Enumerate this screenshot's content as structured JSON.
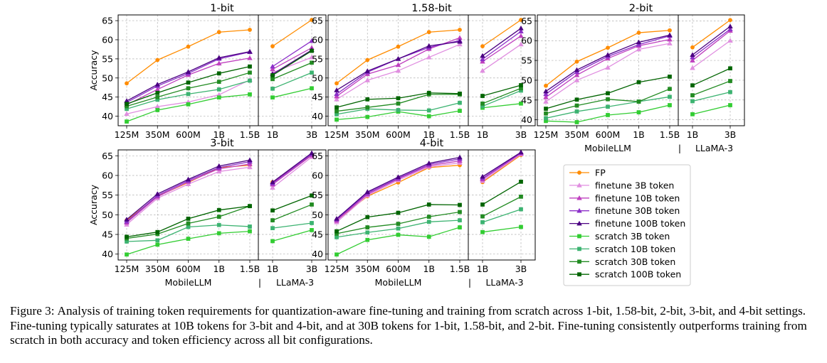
{
  "figure": {
    "ylabel": "Accuracy",
    "group_left": "MobileLLM",
    "group_right": "LLaMA-3",
    "group_separator": "|",
    "left_ticks": [
      "125M",
      "350M",
      "600M",
      "1B",
      "1.5B"
    ],
    "right_ticks": [
      "1B",
      "3B"
    ]
  },
  "caption": {
    "label": "Figure 3:",
    "text": "Analysis of training token requirements for quantization-aware fine-tuning and training from scratch across 1-bit, 1.58-bit, 2-bit, 3-bit, and 4-bit settings. Fine-tuning typically saturates at 10B tokens for 3-bit and 4-bit, and at 30B tokens for 1-bit, 1.58-bit, and 2-bit. Fine-tuning consistently outperforms training from scratch in both accuracy and token efficiency across all bit configurations."
  },
  "legend": [
    {
      "name": "FP",
      "color": "#ff8c00",
      "marker": "circle"
    },
    {
      "name": "finetune 3B token",
      "color": "#e08ee0",
      "marker": "triangle"
    },
    {
      "name": "finetune 10B token",
      "color": "#bf40bf",
      "marker": "triangle"
    },
    {
      "name": "finetune 30B token",
      "color": "#8b2fc9",
      "marker": "triangle"
    },
    {
      "name": "finetune 100B token",
      "color": "#4b0082",
      "marker": "triangle"
    },
    {
      "name": "scratch 3B token",
      "color": "#32cd32",
      "marker": "square"
    },
    {
      "name": "scratch 10B token",
      "color": "#3cb371",
      "marker": "square"
    },
    {
      "name": "scratch 30B token",
      "color": "#228b22",
      "marker": "square"
    },
    {
      "name": "scratch 100B token",
      "color": "#006400",
      "marker": "square"
    }
  ],
  "chart_data": [
    {
      "type": "line",
      "title": "1-bit",
      "ylabel": "Accuracy",
      "ylim": [
        37.5,
        66.5
      ],
      "yticks": [
        40,
        45,
        50,
        55,
        60,
        65
      ],
      "grid": true,
      "left": {
        "categories": [
          "125M",
          "350M",
          "600M",
          "1B",
          "1.5B"
        ],
        "series": [
          {
            "name": "FP",
            "values": [
              48.6,
              54.7,
              58.2,
              62.0,
              62.6
            ]
          },
          {
            "name": "finetune 3B token",
            "values": [
              40.6,
              42.5,
              43.7,
              45.6,
              49.5
            ]
          },
          {
            "name": "finetune 10B token",
            "values": [
              43.0,
              47.0,
              50.8,
              53.8,
              55.2
            ]
          },
          {
            "name": "finetune 30B token",
            "values": [
              43.6,
              47.9,
              51.2,
              55.0,
              56.8
            ]
          },
          {
            "name": "finetune 100B token",
            "values": [
              44.0,
              48.3,
              51.6,
              55.3,
              56.9
            ]
          },
          {
            "name": "scratch 3B token",
            "values": [
              38.6,
              41.6,
              43.1,
              44.9,
              45.7
            ]
          },
          {
            "name": "scratch 10B token",
            "values": [
              41.9,
              44.3,
              45.8,
              47.0,
              49.3
            ]
          },
          {
            "name": "scratch 30B token",
            "values": [
              42.6,
              45.0,
              47.3,
              49.0,
              51.4
            ]
          },
          {
            "name": "scratch 100B token",
            "values": [
              43.2,
              46.1,
              48.8,
              51.2,
              53.0
            ]
          }
        ]
      },
      "right": {
        "categories": [
          "1B",
          "3B"
        ],
        "series": [
          {
            "name": "FP",
            "values": [
              58.3,
              65.2
            ]
          },
          {
            "name": "finetune 3B token",
            "values": [
              51.4,
              55.4
            ]
          },
          {
            "name": "finetune 10B token",
            "values": [
              52.3,
              57.9
            ]
          },
          {
            "name": "finetune 30B token",
            "values": [
              53.0,
              59.7
            ]
          },
          {
            "name": "finetune 100B token",
            "values": [
              51.0,
              57.3
            ]
          },
          {
            "name": "scratch 3B token",
            "values": [
              44.9,
              47.3
            ]
          },
          {
            "name": "scratch 10B token",
            "values": [
              47.2,
              51.4
            ]
          },
          {
            "name": "scratch 30B token",
            "values": [
              49.7,
              54.0
            ]
          },
          {
            "name": "scratch 100B token",
            "values": [
              50.7,
              57.1
            ]
          }
        ]
      }
    },
    {
      "type": "line",
      "title": "1.58-bit",
      "ylabel": "",
      "ylim": [
        37.5,
        66.5
      ],
      "yticks": [
        40,
        45,
        50,
        55,
        60,
        65
      ],
      "grid": true,
      "left": {
        "categories": [
          "125M",
          "350M",
          "600M",
          "1B",
          "1.5B"
        ],
        "series": [
          {
            "name": "FP",
            "values": [
              48.6,
              54.7,
              58.2,
              62.0,
              62.6
            ]
          },
          {
            "name": "finetune 3B token",
            "values": [
              44.4,
              49.4,
              51.9,
              55.4,
              58.8
            ]
          },
          {
            "name": "finetune 10B token",
            "values": [
              45.2,
              51.0,
              53.4,
              57.6,
              60.5
            ]
          },
          {
            "name": "finetune 30B token",
            "values": [
              45.8,
              51.5,
              55.0,
              58.0,
              59.8
            ]
          },
          {
            "name": "finetune 100B token",
            "values": [
              46.8,
              51.8,
              55.0,
              58.4,
              59.5
            ]
          },
          {
            "name": "scratch 3B token",
            "values": [
              39.1,
              39.8,
              41.2,
              40.0,
              41.4
            ]
          },
          {
            "name": "scratch 10B token",
            "values": [
              40.5,
              41.9,
              41.6,
              41.5,
              43.5
            ]
          },
          {
            "name": "scratch 30B token",
            "values": [
              41.3,
              42.3,
              43.3,
              45.7,
              45.7
            ]
          },
          {
            "name": "scratch 100B token",
            "values": [
              42.3,
              44.4,
              44.7,
              46.1,
              45.9
            ]
          }
        ]
      },
      "right": {
        "categories": [
          "1B",
          "3B"
        ],
        "series": [
          {
            "name": "FP",
            "values": [
              58.3,
              65.2
            ]
          },
          {
            "name": "finetune 3B token",
            "values": [
              51.9,
              58.8
            ]
          },
          {
            "name": "finetune 10B token",
            "values": [
              54.3,
              61.0
            ]
          },
          {
            "name": "finetune 30B token",
            "values": [
              54.9,
              62.2
            ]
          },
          {
            "name": "finetune 100B token",
            "values": [
              55.8,
              63.0
            ]
          },
          {
            "name": "scratch 3B token",
            "values": [
              42.2,
              43.3
            ]
          },
          {
            "name": "scratch 10B token",
            "values": [
              42.6,
              46.7
            ]
          },
          {
            "name": "scratch 30B token",
            "values": [
              43.3,
              47.3
            ]
          },
          {
            "name": "scratch 100B token",
            "values": [
              45.3,
              48.1
            ]
          }
        ]
      }
    },
    {
      "type": "line",
      "title": "2-bit",
      "ylabel": "",
      "ylim": [
        38.5,
        66.5
      ],
      "yticks": [
        40,
        45,
        50,
        55,
        60,
        65
      ],
      "grid": true,
      "left": {
        "categories": [
          "125M",
          "350M",
          "600M",
          "1B",
          "1.5B"
        ],
        "series": [
          {
            "name": "FP",
            "values": [
              48.6,
              54.7,
              58.2,
              62.0,
              62.6
            ]
          },
          {
            "name": "finetune 3B token",
            "values": [
              44.6,
              50.0,
              53.2,
              57.8,
              59.3
            ]
          },
          {
            "name": "finetune 10B token",
            "values": [
              45.7,
              51.3,
              55.5,
              58.7,
              60.3
            ]
          },
          {
            "name": "finetune 30B token",
            "values": [
              46.5,
              52.1,
              56.0,
              59.0,
              61.2
            ]
          },
          {
            "name": "finetune 100B token",
            "values": [
              47.2,
              52.6,
              56.4,
              59.6,
              61.4
            ]
          },
          {
            "name": "scratch 3B token",
            "values": [
              39.7,
              39.4,
              41.2,
              41.9,
              43.7
            ]
          },
          {
            "name": "scratch 10B token",
            "values": [
              40.4,
              42.1,
              43.3,
              44.6,
              45.8
            ]
          },
          {
            "name": "scratch 30B token",
            "values": [
              41.6,
              43.6,
              45.2,
              44.6,
              47.8
            ]
          },
          {
            "name": "scratch 100B token",
            "values": [
              42.8,
              45.1,
              46.7,
              49.5,
              50.9
            ]
          }
        ]
      },
      "right": {
        "categories": [
          "1B",
          "3B"
        ],
        "series": [
          {
            "name": "FP",
            "values": [
              58.3,
              65.2
            ]
          },
          {
            "name": "finetune 3B token",
            "values": [
              53.1,
              60.0
            ]
          },
          {
            "name": "finetune 10B token",
            "values": [
              55.0,
              62.5
            ]
          },
          {
            "name": "finetune 30B token",
            "values": [
              55.8,
              62.9
            ]
          },
          {
            "name": "finetune 100B token",
            "values": [
              56.4,
              63.6
            ]
          },
          {
            "name": "scratch 3B token",
            "values": [
              41.4,
              43.7
            ]
          },
          {
            "name": "scratch 10B token",
            "values": [
              44.7,
              47.0
            ]
          },
          {
            "name": "scratch 30B token",
            "values": [
              46.2,
              49.8
            ]
          },
          {
            "name": "scratch 100B token",
            "values": [
              48.7,
              53.0
            ]
          }
        ]
      }
    },
    {
      "type": "line",
      "title": "3-bit",
      "ylabel": "Accuracy",
      "ylim": [
        38.5,
        66.5
      ],
      "yticks": [
        40,
        45,
        50,
        55,
        60,
        65
      ],
      "grid": true,
      "left": {
        "categories": [
          "125M",
          "350M",
          "600M",
          "1B",
          "1.5B"
        ],
        "series": [
          {
            "name": "FP",
            "values": [
              48.6,
              54.7,
              58.2,
              62.0,
              62.6
            ]
          },
          {
            "name": "finetune 3B token",
            "values": [
              47.5,
              54.2,
              57.8,
              61.0,
              62.1
            ]
          },
          {
            "name": "finetune 10B token",
            "values": [
              48.0,
              54.6,
              58.4,
              61.7,
              62.9
            ]
          },
          {
            "name": "finetune 30B token",
            "values": [
              48.3,
              54.9,
              58.7,
              62.0,
              63.5
            ]
          },
          {
            "name": "finetune 100B token",
            "values": [
              48.8,
              55.3,
              59.0,
              62.4,
              63.9
            ]
          },
          {
            "name": "scratch 3B token",
            "values": [
              39.9,
              42.4,
              43.9,
              45.3,
              45.8
            ]
          },
          {
            "name": "scratch 10B token",
            "values": [
              43.2,
              43.5,
              46.9,
              47.4,
              47.0
            ]
          },
          {
            "name": "scratch 30B token",
            "values": [
              44.0,
              45.1,
              47.8,
              49.5,
              52.2
            ]
          },
          {
            "name": "scratch 100B token",
            "values": [
              44.4,
              45.6,
              49.0,
              51.2,
              52.2
            ]
          }
        ]
      },
      "right": {
        "categories": [
          "1B",
          "3B"
        ],
        "series": [
          {
            "name": "FP",
            "values": [
              58.3,
              65.2
            ]
          },
          {
            "name": "finetune 3B token",
            "values": [
              56.9,
              64.7
            ]
          },
          {
            "name": "finetune 10B token",
            "values": [
              57.7,
              65.1
            ]
          },
          {
            "name": "finetune 30B token",
            "values": [
              58.0,
              65.4
            ]
          },
          {
            "name": "finetune 100B token",
            "values": [
              58.3,
              65.7
            ]
          },
          {
            "name": "scratch 3B token",
            "values": [
              43.3,
              46.1
            ]
          },
          {
            "name": "scratch 10B token",
            "values": [
              46.6,
              47.9
            ]
          },
          {
            "name": "scratch 30B token",
            "values": [
              48.6,
              52.6
            ]
          },
          {
            "name": "scratch 100B token",
            "values": [
              51.1,
              54.9
            ]
          }
        ]
      }
    },
    {
      "type": "line",
      "title": "4-bit",
      "ylabel": "",
      "ylim": [
        38.5,
        66.5
      ],
      "yticks": [
        40,
        45,
        50,
        55,
        60,
        65
      ],
      "grid": true,
      "left": {
        "categories": [
          "125M",
          "350M",
          "600M",
          "1B",
          "1.5B"
        ],
        "series": [
          {
            "name": "FP",
            "values": [
              48.6,
              54.7,
              58.2,
              62.0,
              62.6
            ]
          },
          {
            "name": "finetune 3B token",
            "values": [
              48.1,
              54.9,
              58.8,
              62.2,
              63.2
            ]
          },
          {
            "name": "finetune 10B token",
            "values": [
              48.5,
              55.2,
              59.1,
              62.5,
              63.7
            ]
          },
          {
            "name": "finetune 30B token",
            "values": [
              48.8,
              55.5,
              59.3,
              62.8,
              64.2
            ]
          },
          {
            "name": "finetune 100B token",
            "values": [
              49.0,
              55.8,
              59.6,
              63.1,
              64.6
            ]
          },
          {
            "name": "scratch 3B token",
            "values": [
              39.9,
              43.6,
              44.9,
              44.4,
              46.8
            ]
          },
          {
            "name": "scratch 10B token",
            "values": [
              44.3,
              45.5,
              46.5,
              48.2,
              48.6
            ]
          },
          {
            "name": "scratch 30B token",
            "values": [
              45.2,
              46.8,
              47.7,
              49.5,
              50.7
            ]
          },
          {
            "name": "scratch 100B token",
            "values": [
              45.8,
              49.4,
              50.5,
              52.6,
              52.5
            ]
          }
        ]
      },
      "right": {
        "categories": [
          "1B",
          "3B"
        ],
        "series": [
          {
            "name": "FP",
            "values": [
              58.3,
              65.2
            ]
          },
          {
            "name": "finetune 3B token",
            "values": [
              58.6,
              65.4
            ]
          },
          {
            "name": "finetune 10B token",
            "values": [
              59.0,
              65.6
            ]
          },
          {
            "name": "finetune 30B token",
            "values": [
              59.3,
              65.8
            ]
          },
          {
            "name": "finetune 100B token",
            "values": [
              59.7,
              65.9
            ]
          },
          {
            "name": "scratch 3B token",
            "values": [
              45.6,
              46.9
            ]
          },
          {
            "name": "scratch 10B token",
            "values": [
              48.1,
              51.4
            ]
          },
          {
            "name": "scratch 30B token",
            "values": [
              49.6,
              54.6
            ]
          },
          {
            "name": "scratch 100B token",
            "values": [
              52.6,
              58.4
            ]
          }
        ]
      }
    }
  ]
}
